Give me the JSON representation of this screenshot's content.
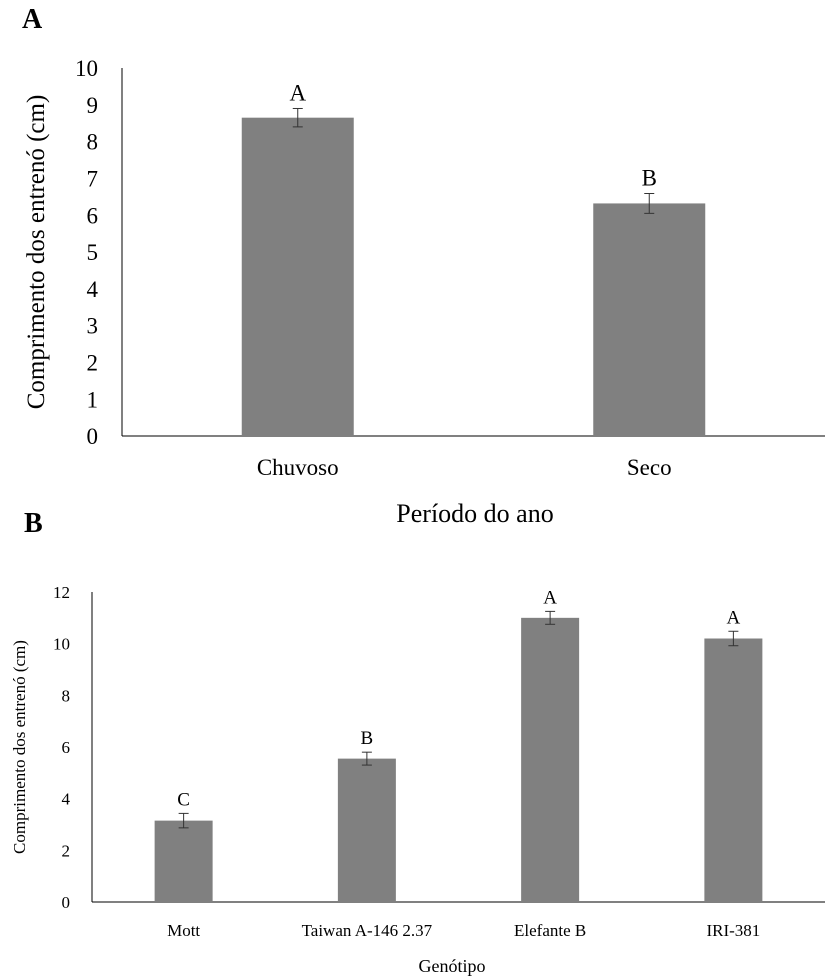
{
  "panels": [
    {
      "letter": "A",
      "chart_data": {
        "type": "bar",
        "categories": [
          "Chuvoso",
          "Seco"
        ],
        "values": [
          8.65,
          6.32
        ],
        "errors": [
          0.25,
          0.27
        ],
        "significance_letters": [
          "A",
          "B"
        ],
        "xlabel": "Período do ano",
        "ylabel": "Comprimento dos entrenó (cm)",
        "ylim": [
          0,
          10
        ],
        "yticks": [
          0,
          1,
          2,
          3,
          4,
          5,
          6,
          7,
          8,
          9,
          10
        ],
        "bar_color": "#808080",
        "grid": false
      }
    },
    {
      "letter": "B",
      "chart_data": {
        "type": "bar",
        "categories": [
          "Mott",
          "Taiwan A-146 2.37",
          "Elefante B",
          "IRI-381"
        ],
        "values": [
          3.15,
          5.55,
          11.0,
          10.2
        ],
        "errors": [
          0.28,
          0.25,
          0.25,
          0.28
        ],
        "significance_letters": [
          "C",
          "B",
          "A",
          "A"
        ],
        "xlabel": "Genótipo",
        "ylabel": "Comprimento dos entrenó (cm)",
        "ylim": [
          0,
          12
        ],
        "yticks": [
          0,
          2,
          4,
          6,
          8,
          10,
          12
        ],
        "bar_color": "#808080",
        "grid": false
      }
    }
  ]
}
